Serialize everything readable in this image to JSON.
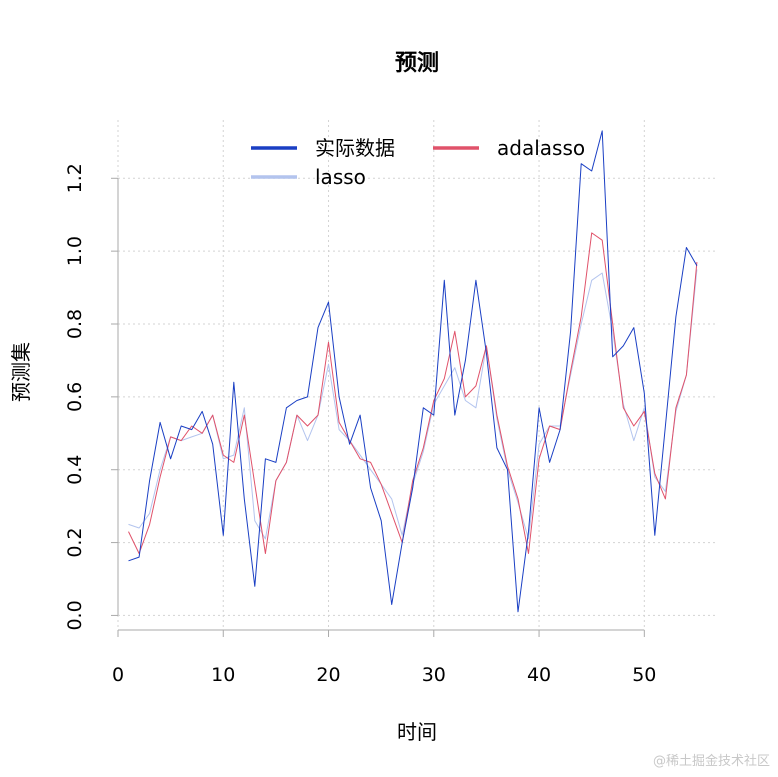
{
  "watermark": "@稀土掘金技术社区",
  "chart_data": {
    "type": "line",
    "title": "预测",
    "xlabel": "时间",
    "ylabel": "预测集",
    "xlim": [
      0,
      57
    ],
    "ylim": [
      -0.04,
      1.36
    ],
    "x_ticks": [
      0,
      10,
      20,
      30,
      40,
      50
    ],
    "y_ticks": [
      0.0,
      0.2,
      0.4,
      0.6,
      0.8,
      1.0,
      1.2
    ],
    "x_tick_labels": [
      "0",
      "10",
      "20",
      "30",
      "40",
      "50"
    ],
    "y_tick_labels": [
      "0.0",
      "0.2",
      "0.4",
      "0.6",
      "0.8",
      "1.0",
      "1.2"
    ],
    "grid": true,
    "legend_position": "top",
    "x": [
      1,
      2,
      3,
      4,
      5,
      6,
      7,
      8,
      9,
      10,
      11,
      12,
      13,
      14,
      15,
      16,
      17,
      18,
      19,
      20,
      21,
      22,
      23,
      24,
      25,
      26,
      27,
      28,
      29,
      30,
      31,
      32,
      33,
      34,
      35,
      36,
      37,
      38,
      39,
      40,
      41,
      42,
      43,
      44,
      45,
      46,
      47,
      48,
      49,
      50,
      51,
      52,
      53,
      54,
      55
    ],
    "series": [
      {
        "name": "实际数据",
        "color": "#1a3fc4",
        "values": [
          0.15,
          0.16,
          0.37,
          0.53,
          0.43,
          0.52,
          0.51,
          0.56,
          0.47,
          0.22,
          0.64,
          0.32,
          0.08,
          0.43,
          0.42,
          0.57,
          0.59,
          0.6,
          0.79,
          0.86,
          0.6,
          0.47,
          0.55,
          0.35,
          0.26,
          0.03,
          0.2,
          0.35,
          0.57,
          0.55,
          0.92,
          0.55,
          0.7,
          0.92,
          0.72,
          0.46,
          0.4,
          0.01,
          0.23,
          0.57,
          0.42,
          0.51,
          0.78,
          1.24,
          1.22,
          1.33,
          0.71,
          0.74,
          0.79,
          0.61,
          0.22,
          0.52,
          0.82,
          1.01,
          0.96
        ]
      },
      {
        "name": "lasso",
        "color": "#b3c4ee",
        "values": [
          0.25,
          0.24,
          0.28,
          0.4,
          0.49,
          0.48,
          0.49,
          0.5,
          0.55,
          0.43,
          0.44,
          0.57,
          0.26,
          0.21,
          0.37,
          0.42,
          0.55,
          0.48,
          0.55,
          0.69,
          0.51,
          0.48,
          0.44,
          0.4,
          0.36,
          0.32,
          0.22,
          0.36,
          0.45,
          0.58,
          0.63,
          0.68,
          0.59,
          0.57,
          0.74,
          0.54,
          0.4,
          0.31,
          0.21,
          0.47,
          0.52,
          0.52,
          0.66,
          0.8,
          0.92,
          0.94,
          0.78,
          0.58,
          0.48,
          0.57,
          0.38,
          0.34,
          0.56,
          0.66,
          0.95
        ]
      },
      {
        "name": "adalasso",
        "color": "#e0526a",
        "values": [
          0.23,
          0.17,
          0.25,
          0.38,
          0.49,
          0.48,
          0.52,
          0.5,
          0.55,
          0.44,
          0.42,
          0.55,
          0.36,
          0.17,
          0.37,
          0.42,
          0.55,
          0.52,
          0.55,
          0.75,
          0.53,
          0.48,
          0.43,
          0.42,
          0.36,
          0.28,
          0.2,
          0.37,
          0.46,
          0.59,
          0.65,
          0.78,
          0.6,
          0.63,
          0.74,
          0.55,
          0.41,
          0.32,
          0.17,
          0.43,
          0.52,
          0.51,
          0.67,
          0.82,
          1.05,
          1.03,
          0.8,
          0.57,
          0.52,
          0.56,
          0.39,
          0.32,
          0.57,
          0.66,
          0.97
        ]
      }
    ],
    "legend": [
      {
        "label": "实际数据",
        "color": "#1a3fc4"
      },
      {
        "label": "adalasso",
        "color": "#e0526a"
      },
      {
        "label": "lasso",
        "color": "#b3c4ee"
      }
    ]
  }
}
